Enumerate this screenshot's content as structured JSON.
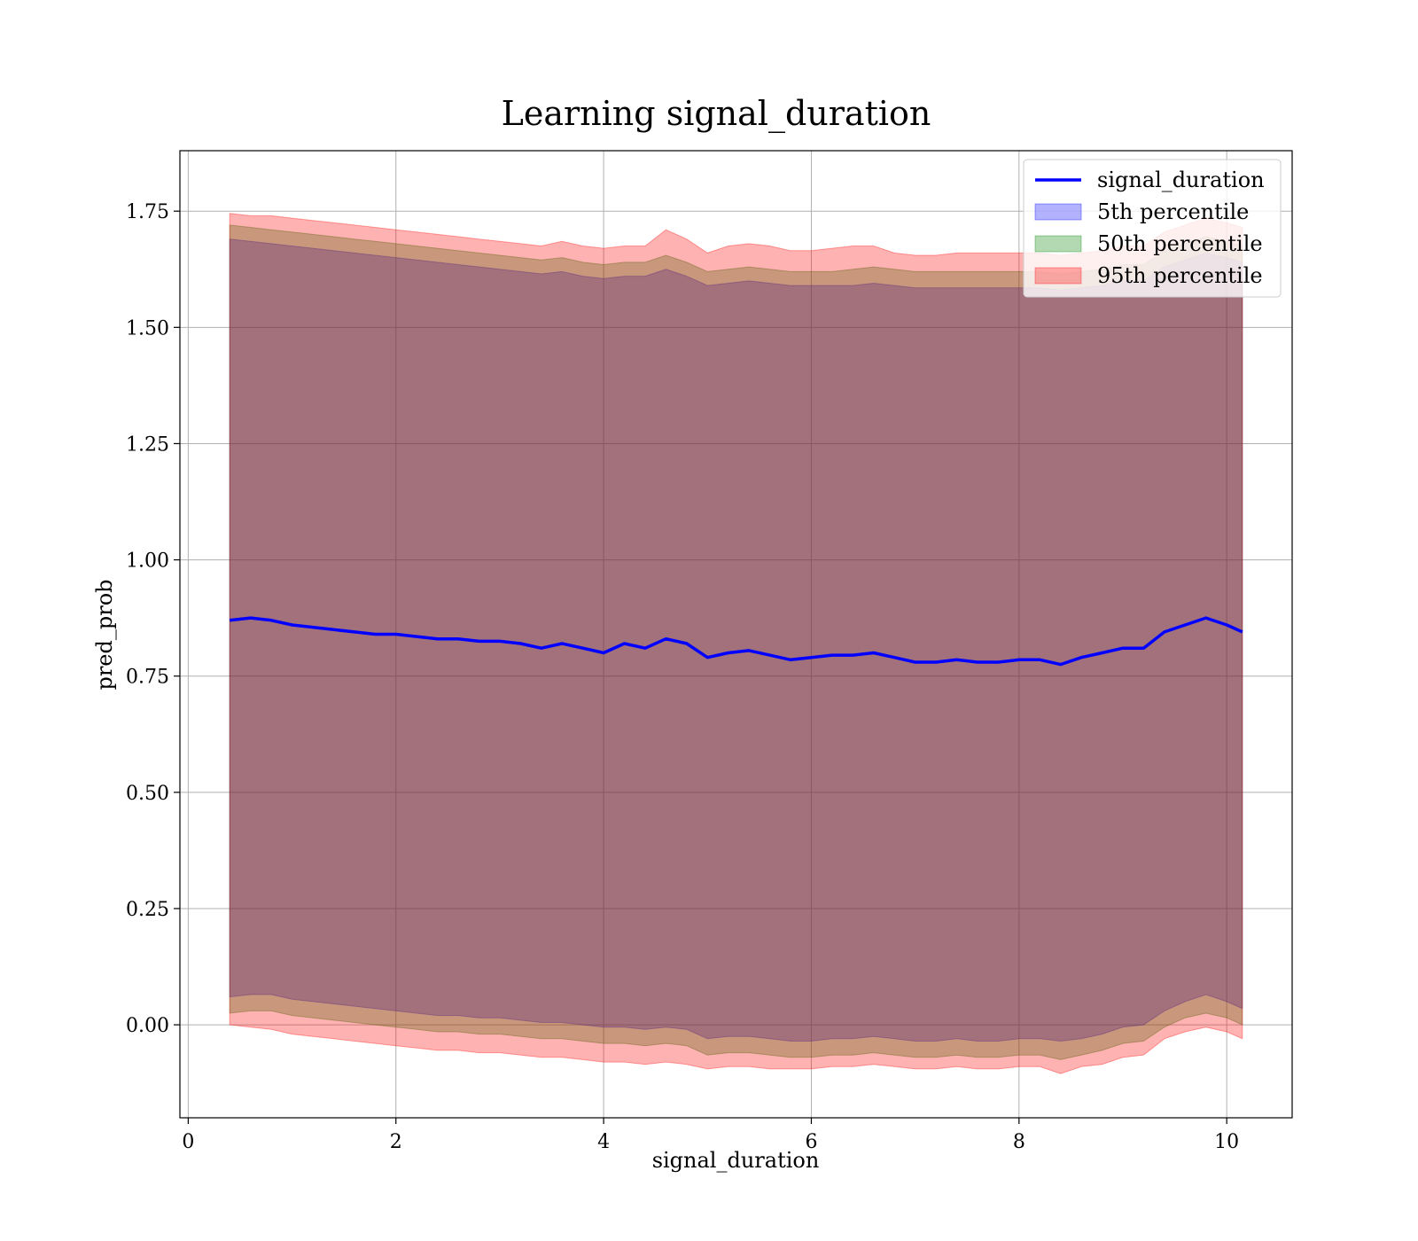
{
  "chart_data": {
    "type": "area",
    "title": "Learning signal_duration",
    "xlabel": "signal_duration",
    "ylabel": "pred_prob",
    "xlim": [
      -0.08,
      10.63
    ],
    "ylim": [
      -0.2,
      1.88
    ],
    "xticks": [
      0,
      2,
      4,
      6,
      8,
      10
    ],
    "yticks": [
      0.0,
      0.25,
      0.5,
      0.75,
      1.0,
      1.25,
      1.5,
      1.75
    ],
    "xtick_labels": [
      "0",
      "2",
      "4",
      "6",
      "8",
      "10"
    ],
    "ytick_labels": [
      "0.00",
      "0.25",
      "0.50",
      "0.75",
      "1.00",
      "1.25",
      "1.50",
      "1.75"
    ],
    "grid": true,
    "legend_position": "top-right",
    "x": [
      0.4,
      0.6,
      0.8,
      1.0,
      1.2,
      1.4,
      1.6,
      1.8,
      2.0,
      2.2,
      2.4,
      2.6,
      2.8,
      3.0,
      3.2,
      3.4,
      3.6,
      3.8,
      4.0,
      4.2,
      4.4,
      4.6,
      4.8,
      5.0,
      5.2,
      5.4,
      5.6,
      5.8,
      6.0,
      6.2,
      6.4,
      6.6,
      6.8,
      7.0,
      7.2,
      7.4,
      7.6,
      7.8,
      8.0,
      8.2,
      8.4,
      8.6,
      8.8,
      9.0,
      9.2,
      9.4,
      9.6,
      9.8,
      10.0,
      10.15
    ],
    "series": [
      {
        "name": "signal_duration",
        "kind": "line",
        "color": "#0000ff",
        "values": [
          0.87,
          0.875,
          0.87,
          0.86,
          0.855,
          0.85,
          0.845,
          0.84,
          0.84,
          0.835,
          0.83,
          0.83,
          0.825,
          0.825,
          0.82,
          0.81,
          0.82,
          0.81,
          0.8,
          0.82,
          0.81,
          0.83,
          0.82,
          0.79,
          0.8,
          0.805,
          0.795,
          0.785,
          0.79,
          0.795,
          0.795,
          0.8,
          0.79,
          0.78,
          0.78,
          0.785,
          0.78,
          0.78,
          0.785,
          0.785,
          0.775,
          0.79,
          0.8,
          0.81,
          0.81,
          0.845,
          0.86,
          0.875,
          0.86,
          0.845
        ]
      },
      {
        "name": "5th percentile",
        "kind": "band",
        "color": "#0000ff",
        "lower": [
          0.06,
          0.065,
          0.065,
          0.055,
          0.05,
          0.045,
          0.04,
          0.035,
          0.03,
          0.025,
          0.02,
          0.02,
          0.015,
          0.015,
          0.01,
          0.005,
          0.005,
          0.0,
          -0.005,
          -0.005,
          -0.01,
          -0.005,
          -0.01,
          -0.03,
          -0.025,
          -0.025,
          -0.03,
          -0.035,
          -0.035,
          -0.03,
          -0.03,
          -0.025,
          -0.03,
          -0.035,
          -0.035,
          -0.03,
          -0.035,
          -0.035,
          -0.03,
          -0.03,
          -0.035,
          -0.03,
          -0.02,
          -0.005,
          0.0,
          0.03,
          0.05,
          0.065,
          0.05,
          0.035
        ],
        "upper": [
          1.69,
          1.685,
          1.68,
          1.675,
          1.67,
          1.665,
          1.66,
          1.655,
          1.65,
          1.645,
          1.64,
          1.635,
          1.63,
          1.625,
          1.62,
          1.615,
          1.62,
          1.61,
          1.605,
          1.61,
          1.61,
          1.625,
          1.61,
          1.59,
          1.595,
          1.6,
          1.595,
          1.59,
          1.59,
          1.59,
          1.59,
          1.595,
          1.59,
          1.585,
          1.585,
          1.585,
          1.585,
          1.585,
          1.585,
          1.585,
          1.58,
          1.585,
          1.59,
          1.6,
          1.6,
          1.63,
          1.645,
          1.66,
          1.65,
          1.64
        ]
      },
      {
        "name": "50th percentile",
        "kind": "band",
        "color": "#008000",
        "lower": [
          0.025,
          0.03,
          0.03,
          0.02,
          0.015,
          0.01,
          0.005,
          0.0,
          -0.005,
          -0.01,
          -0.015,
          -0.015,
          -0.02,
          -0.02,
          -0.025,
          -0.03,
          -0.03,
          -0.035,
          -0.04,
          -0.04,
          -0.045,
          -0.04,
          -0.045,
          -0.065,
          -0.06,
          -0.06,
          -0.065,
          -0.07,
          -0.07,
          -0.065,
          -0.065,
          -0.06,
          -0.065,
          -0.07,
          -0.07,
          -0.065,
          -0.07,
          -0.07,
          -0.065,
          -0.065,
          -0.075,
          -0.065,
          -0.055,
          -0.04,
          -0.035,
          -0.005,
          0.015,
          0.025,
          0.015,
          0.0
        ],
        "upper": [
          1.72,
          1.715,
          1.71,
          1.705,
          1.7,
          1.695,
          1.69,
          1.685,
          1.68,
          1.675,
          1.67,
          1.665,
          1.66,
          1.655,
          1.65,
          1.645,
          1.65,
          1.64,
          1.635,
          1.64,
          1.64,
          1.655,
          1.64,
          1.62,
          1.625,
          1.63,
          1.625,
          1.62,
          1.62,
          1.62,
          1.625,
          1.63,
          1.625,
          1.62,
          1.62,
          1.62,
          1.62,
          1.62,
          1.62,
          1.62,
          1.615,
          1.62,
          1.625,
          1.635,
          1.635,
          1.665,
          1.68,
          1.695,
          1.685,
          1.675
        ]
      },
      {
        "name": "95th percentile",
        "kind": "band",
        "color": "#ff0000",
        "lower": [
          0.0,
          -0.005,
          -0.01,
          -0.02,
          -0.025,
          -0.03,
          -0.035,
          -0.04,
          -0.045,
          -0.05,
          -0.055,
          -0.055,
          -0.06,
          -0.06,
          -0.065,
          -0.07,
          -0.07,
          -0.075,
          -0.08,
          -0.08,
          -0.085,
          -0.08,
          -0.085,
          -0.095,
          -0.09,
          -0.09,
          -0.095,
          -0.095,
          -0.095,
          -0.09,
          -0.09,
          -0.085,
          -0.09,
          -0.095,
          -0.095,
          -0.09,
          -0.095,
          -0.095,
          -0.09,
          -0.09,
          -0.105,
          -0.09,
          -0.085,
          -0.07,
          -0.065,
          -0.03,
          -0.015,
          -0.005,
          -0.015,
          -0.03
        ],
        "upper": [
          1.745,
          1.74,
          1.74,
          1.735,
          1.73,
          1.725,
          1.72,
          1.715,
          1.71,
          1.705,
          1.7,
          1.695,
          1.69,
          1.685,
          1.68,
          1.675,
          1.685,
          1.675,
          1.67,
          1.675,
          1.675,
          1.71,
          1.69,
          1.66,
          1.675,
          1.68,
          1.675,
          1.665,
          1.665,
          1.67,
          1.675,
          1.675,
          1.66,
          1.655,
          1.655,
          1.66,
          1.66,
          1.66,
          1.66,
          1.66,
          1.655,
          1.66,
          1.665,
          1.675,
          1.675,
          1.705,
          1.72,
          1.735,
          1.725,
          1.715
        ]
      }
    ]
  }
}
